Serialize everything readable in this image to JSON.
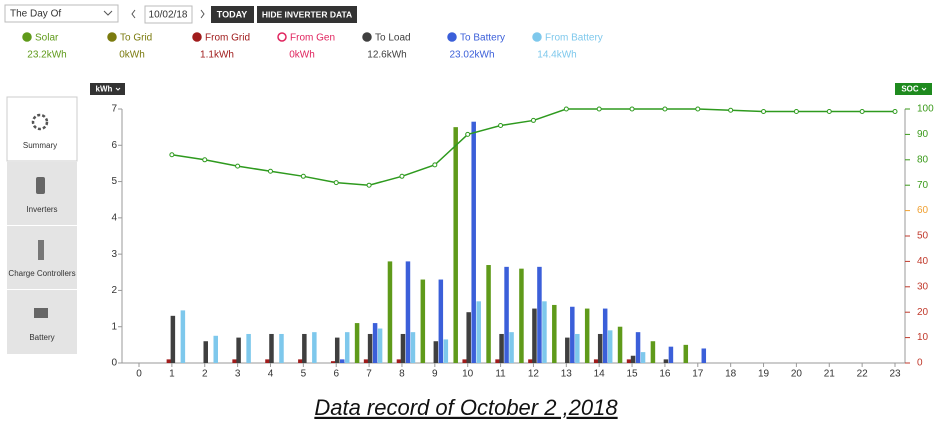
{
  "controls": {
    "range": "The Day Of",
    "date": "10/02/18",
    "today": "TODAY",
    "hide": "HIDE INVERTER DATA"
  },
  "sidebar": {
    "tabs": [
      "Summary",
      "Inverters",
      "Charge Controllers",
      "Battery"
    ]
  },
  "caption": "Data record of October 2 ,2018",
  "chart_data": {
    "type": "bar",
    "y_axis_label": "kWh",
    "y2_axis_label": "SOC",
    "categories": [
      "0",
      "1",
      "2",
      "3",
      "4",
      "5",
      "6",
      "7",
      "8",
      "9",
      "10",
      "11",
      "12",
      "13",
      "14",
      "15",
      "16",
      "17",
      "18",
      "19",
      "20",
      "21",
      "22",
      "23"
    ],
    "ylim": [
      0,
      7
    ],
    "yticks": [
      0,
      1,
      2,
      3,
      4,
      5,
      6,
      7
    ],
    "y2lim": [
      0,
      100
    ],
    "y2ticks": [
      0,
      10,
      20,
      30,
      40,
      50,
      60,
      70,
      80,
      90,
      100
    ],
    "y2tick_colors": [
      "#c0392b",
      "#c0392b",
      "#c0392b",
      "#c0392b",
      "#c0392b",
      "#c0392b",
      "#f0a030",
      "#3a9a1a",
      "#3a9a1a",
      "#3a9a1a",
      "#3a9a1a"
    ],
    "series": [
      {
        "name": "Solar",
        "total": "23.2kWh",
        "color": "#5f9a1a",
        "values": [
          0,
          0,
          0,
          0,
          0,
          0,
          0,
          1.1,
          2.8,
          2.3,
          6.5,
          2.7,
          2.6,
          1.6,
          1.5,
          1.0,
          0.6,
          0.5,
          0,
          0,
          0,
          0,
          0,
          0
        ]
      },
      {
        "name": "To Grid",
        "total": "0kWh",
        "color": "#7b7b0f",
        "values": [
          0,
          0,
          0,
          0,
          0,
          0,
          0,
          0,
          0,
          0,
          0,
          0,
          0,
          0,
          0,
          0,
          0,
          0,
          0,
          0,
          0,
          0,
          0,
          0
        ]
      },
      {
        "name": "From Grid",
        "total": "1.1kWh",
        "color": "#a01c1c",
        "values": [
          0,
          0.1,
          0,
          0.1,
          0.1,
          0.1,
          0.05,
          0.1,
          0.1,
          0,
          0.1,
          0.1,
          0.1,
          0,
          0.1,
          0.1,
          0,
          0,
          0,
          0,
          0,
          0,
          0,
          0
        ]
      },
      {
        "name": "From Gen",
        "total": "0kWh",
        "color": "#e0245e",
        "hollow": true,
        "values": [
          0,
          0,
          0,
          0,
          0,
          0,
          0,
          0,
          0,
          0,
          0,
          0,
          0,
          0,
          0,
          0,
          0,
          0,
          0,
          0,
          0,
          0,
          0,
          0
        ]
      },
      {
        "name": "To Load",
        "total": "12.6kWh",
        "color": "#3f3f3f",
        "values": [
          0,
          1.3,
          0.6,
          0.7,
          0.8,
          0.8,
          0.7,
          0.8,
          0.8,
          0.6,
          1.4,
          0.8,
          1.5,
          0.7,
          0.8,
          0.2,
          0.1,
          0,
          0,
          0,
          0,
          0,
          0,
          0
        ]
      },
      {
        "name": "To Battery",
        "total": "23.02kWh",
        "color": "#3b5fd9",
        "values": [
          0,
          0,
          0,
          0,
          0,
          0,
          0.1,
          1.1,
          2.8,
          2.3,
          6.65,
          2.65,
          2.65,
          1.55,
          1.5,
          0.85,
          0.45,
          0.4,
          0,
          0,
          0,
          0,
          0,
          0
        ]
      },
      {
        "name": "From Battery",
        "total": "14.4kWh",
        "color": "#7ec8ec",
        "values": [
          0,
          1.45,
          0.75,
          0.8,
          0.8,
          0.85,
          0.85,
          0.95,
          0.85,
          0.65,
          1.7,
          0.85,
          1.7,
          0.8,
          0.9,
          0.3,
          0,
          0,
          0,
          0,
          0,
          0,
          0,
          0
        ]
      },
      {
        "name": "SOC",
        "type": "line",
        "axis": "y2",
        "color": "#2e9a1e",
        "values": [
          null,
          82,
          80,
          77.5,
          75.5,
          73.5,
          71,
          70,
          73.5,
          78,
          90,
          93.5,
          95.5,
          100,
          100,
          100,
          100,
          100,
          99.5,
          99,
          99,
          99,
          99,
          99
        ]
      }
    ]
  }
}
